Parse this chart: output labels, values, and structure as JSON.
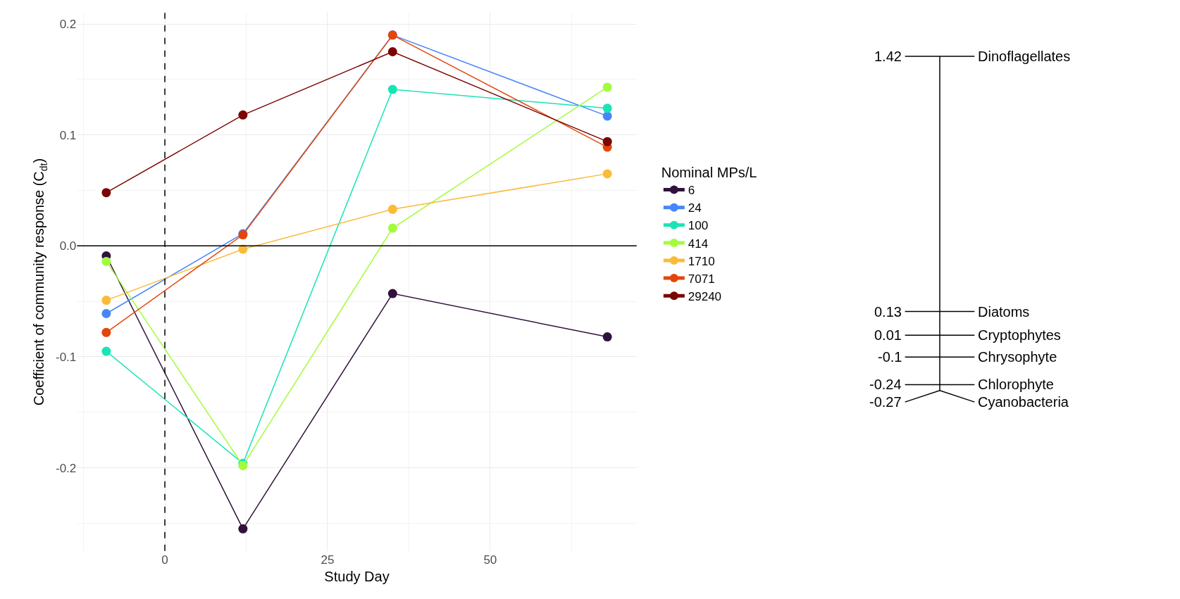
{
  "chart_data": [
    {
      "type": "line",
      "xlabel": "Study Day",
      "ylabel": "Coefficient of community response (C$_{dt}$)",
      "legend_title": "Nominal MPs/L",
      "x": [
        -9,
        12,
        35,
        68
      ],
      "series": [
        {
          "name": "6",
          "color": "#30123b",
          "values": [
            -0.009,
            -0.255,
            -0.043,
            -0.082
          ]
        },
        {
          "name": "24",
          "color": "#4686fb",
          "values": [
            -0.061,
            0.011,
            0.19,
            0.117
          ]
        },
        {
          "name": "100",
          "color": "#1ae4b6",
          "values": [
            -0.095,
            -0.196,
            0.141,
            0.124
          ]
        },
        {
          "name": "414",
          "color": "#a2fc3c",
          "values": [
            -0.014,
            -0.198,
            0.016,
            0.143
          ]
        },
        {
          "name": "1710",
          "color": "#fabb39",
          "values": [
            -0.049,
            -0.003,
            0.033,
            0.065
          ]
        },
        {
          "name": "7071",
          "color": "#e4460a",
          "values": [
            -0.078,
            0.01,
            0.19,
            0.089
          ]
        },
        {
          "name": "29240",
          "color": "#7a0403",
          "values": [
            0.048,
            0.118,
            0.175,
            0.094
          ]
        }
      ],
      "xlim": [
        -13.5,
        72.5
      ],
      "xticks": [
        0,
        25,
        50
      ],
      "ylim": [
        -0.275,
        0.21
      ],
      "yticks": [
        -0.2,
        -0.1,
        {
          "value": 0,
          "label": "0.0"
        },
        0.1,
        0.2
      ],
      "ref_lines": [
        {
          "axis": "x",
          "value": 0,
          "color": "#000000",
          "line_style": "dashed"
        },
        {
          "axis": "y",
          "value": 0,
          "color": "#000000",
          "line_style": "solid"
        }
      ],
      "grid": true,
      "legend": "right",
      "marker": "circle",
      "line_style": "solid"
    },
    {
      "type": "other",
      "categories": [
        "Dinoflagellates",
        "Diatoms",
        "Cryptophytes",
        "Chrysophyte",
        "Chlorophyte",
        "Cyanobacteria"
      ],
      "values": [
        1.42,
        0.13,
        0.01,
        -0.1,
        -0.24,
        -0.27
      ],
      "value_labels": [
        "1.42",
        "0.13",
        "0.01",
        "-0.1",
        "-0.24",
        "-0.27"
      ]
    }
  ]
}
